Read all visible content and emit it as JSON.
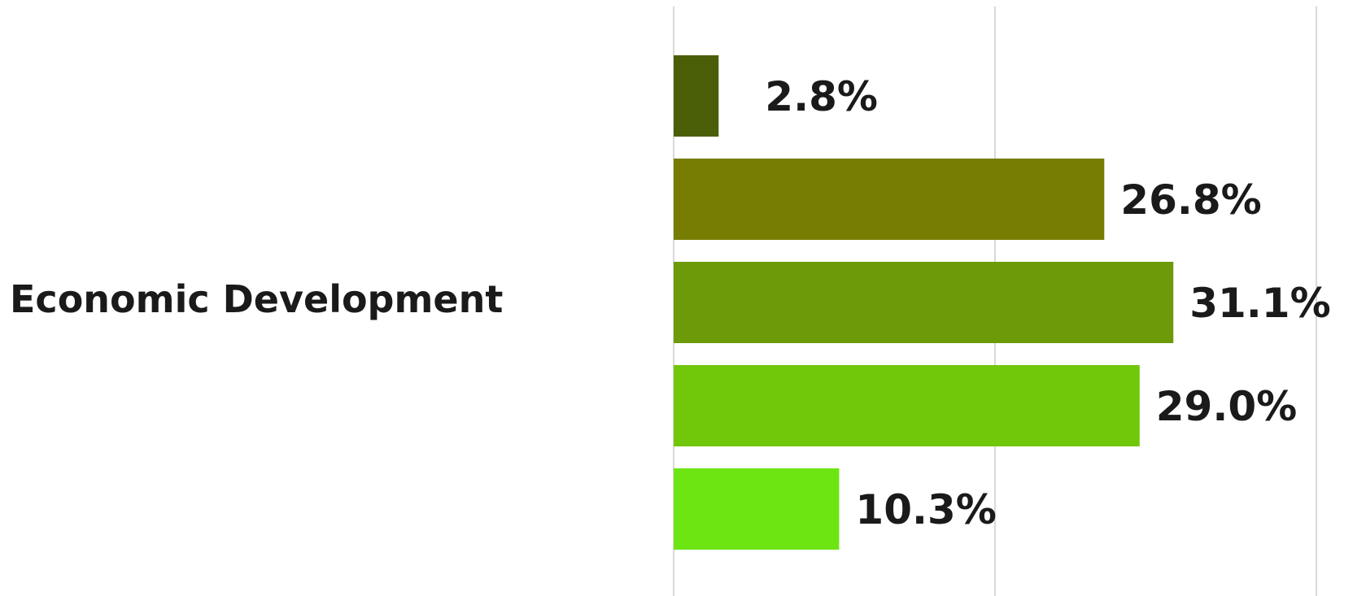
{
  "chart_data": {
    "type": "bar",
    "orientation": "horizontal",
    "category": "Economic Development",
    "series": [
      {
        "value": 2.8,
        "label": "2.8%",
        "color": "#4a5e07"
      },
      {
        "value": 26.8,
        "label": "26.8%",
        "color": "#767d02"
      },
      {
        "value": 31.1,
        "label": "31.1%",
        "color": "#6c9a09"
      },
      {
        "value": 29.0,
        "label": "29.0%",
        "color": "#71c70a"
      },
      {
        "value": 10.3,
        "label": "10.3%",
        "color": "#6de512"
      }
    ],
    "xlim": [
      0,
      40
    ],
    "grid": true,
    "legend": "none"
  }
}
